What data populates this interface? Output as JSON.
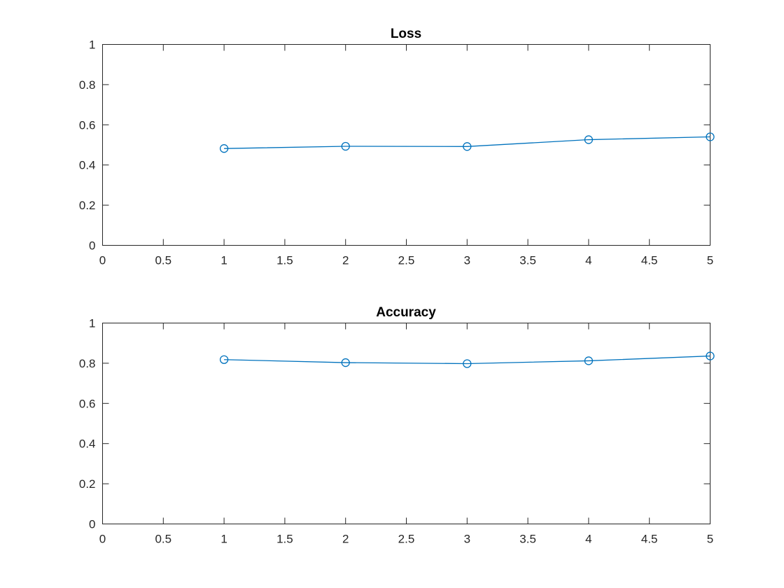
{
  "colors": {
    "series": "#0072bd",
    "axis": "#262626",
    "background": "#ffffff"
  },
  "chart_data": [
    {
      "type": "line",
      "title": "Loss",
      "xlabel": "",
      "ylabel": "",
      "xlim": [
        0,
        5
      ],
      "ylim": [
        0,
        1
      ],
      "xticks": [
        0,
        0.5,
        1,
        1.5,
        2,
        2.5,
        3,
        3.5,
        4,
        4.5,
        5
      ],
      "xtick_labels": [
        "0",
        "0.5",
        "1",
        "1.5",
        "2",
        "2.5",
        "3",
        "3.5",
        "4",
        "4.5",
        "5"
      ],
      "yticks": [
        0,
        0.2,
        0.4,
        0.6,
        0.8,
        1
      ],
      "ytick_labels": [
        "0",
        "0.2",
        "0.4",
        "0.6",
        "0.8",
        "1"
      ],
      "grid": false,
      "marker": "circle",
      "series": [
        {
          "x": [
            1,
            2,
            3,
            4,
            5
          ],
          "values": [
            0.482,
            0.493,
            0.492,
            0.526,
            0.54
          ]
        }
      ]
    },
    {
      "type": "line",
      "title": "Accuracy",
      "xlabel": "",
      "ylabel": "",
      "xlim": [
        0,
        5
      ],
      "ylim": [
        0,
        1
      ],
      "xticks": [
        0,
        0.5,
        1,
        1.5,
        2,
        2.5,
        3,
        3.5,
        4,
        4.5,
        5
      ],
      "xtick_labels": [
        "0",
        "0.5",
        "1",
        "1.5",
        "2",
        "2.5",
        "3",
        "3.5",
        "4",
        "4.5",
        "5"
      ],
      "yticks": [
        0,
        0.2,
        0.4,
        0.6,
        0.8,
        1
      ],
      "ytick_labels": [
        "0",
        "0.2",
        "0.4",
        "0.6",
        "0.8",
        "1"
      ],
      "grid": false,
      "marker": "circle",
      "series": [
        {
          "x": [
            1,
            2,
            3,
            4,
            5
          ],
          "values": [
            0.818,
            0.803,
            0.798,
            0.812,
            0.836
          ]
        }
      ]
    }
  ]
}
